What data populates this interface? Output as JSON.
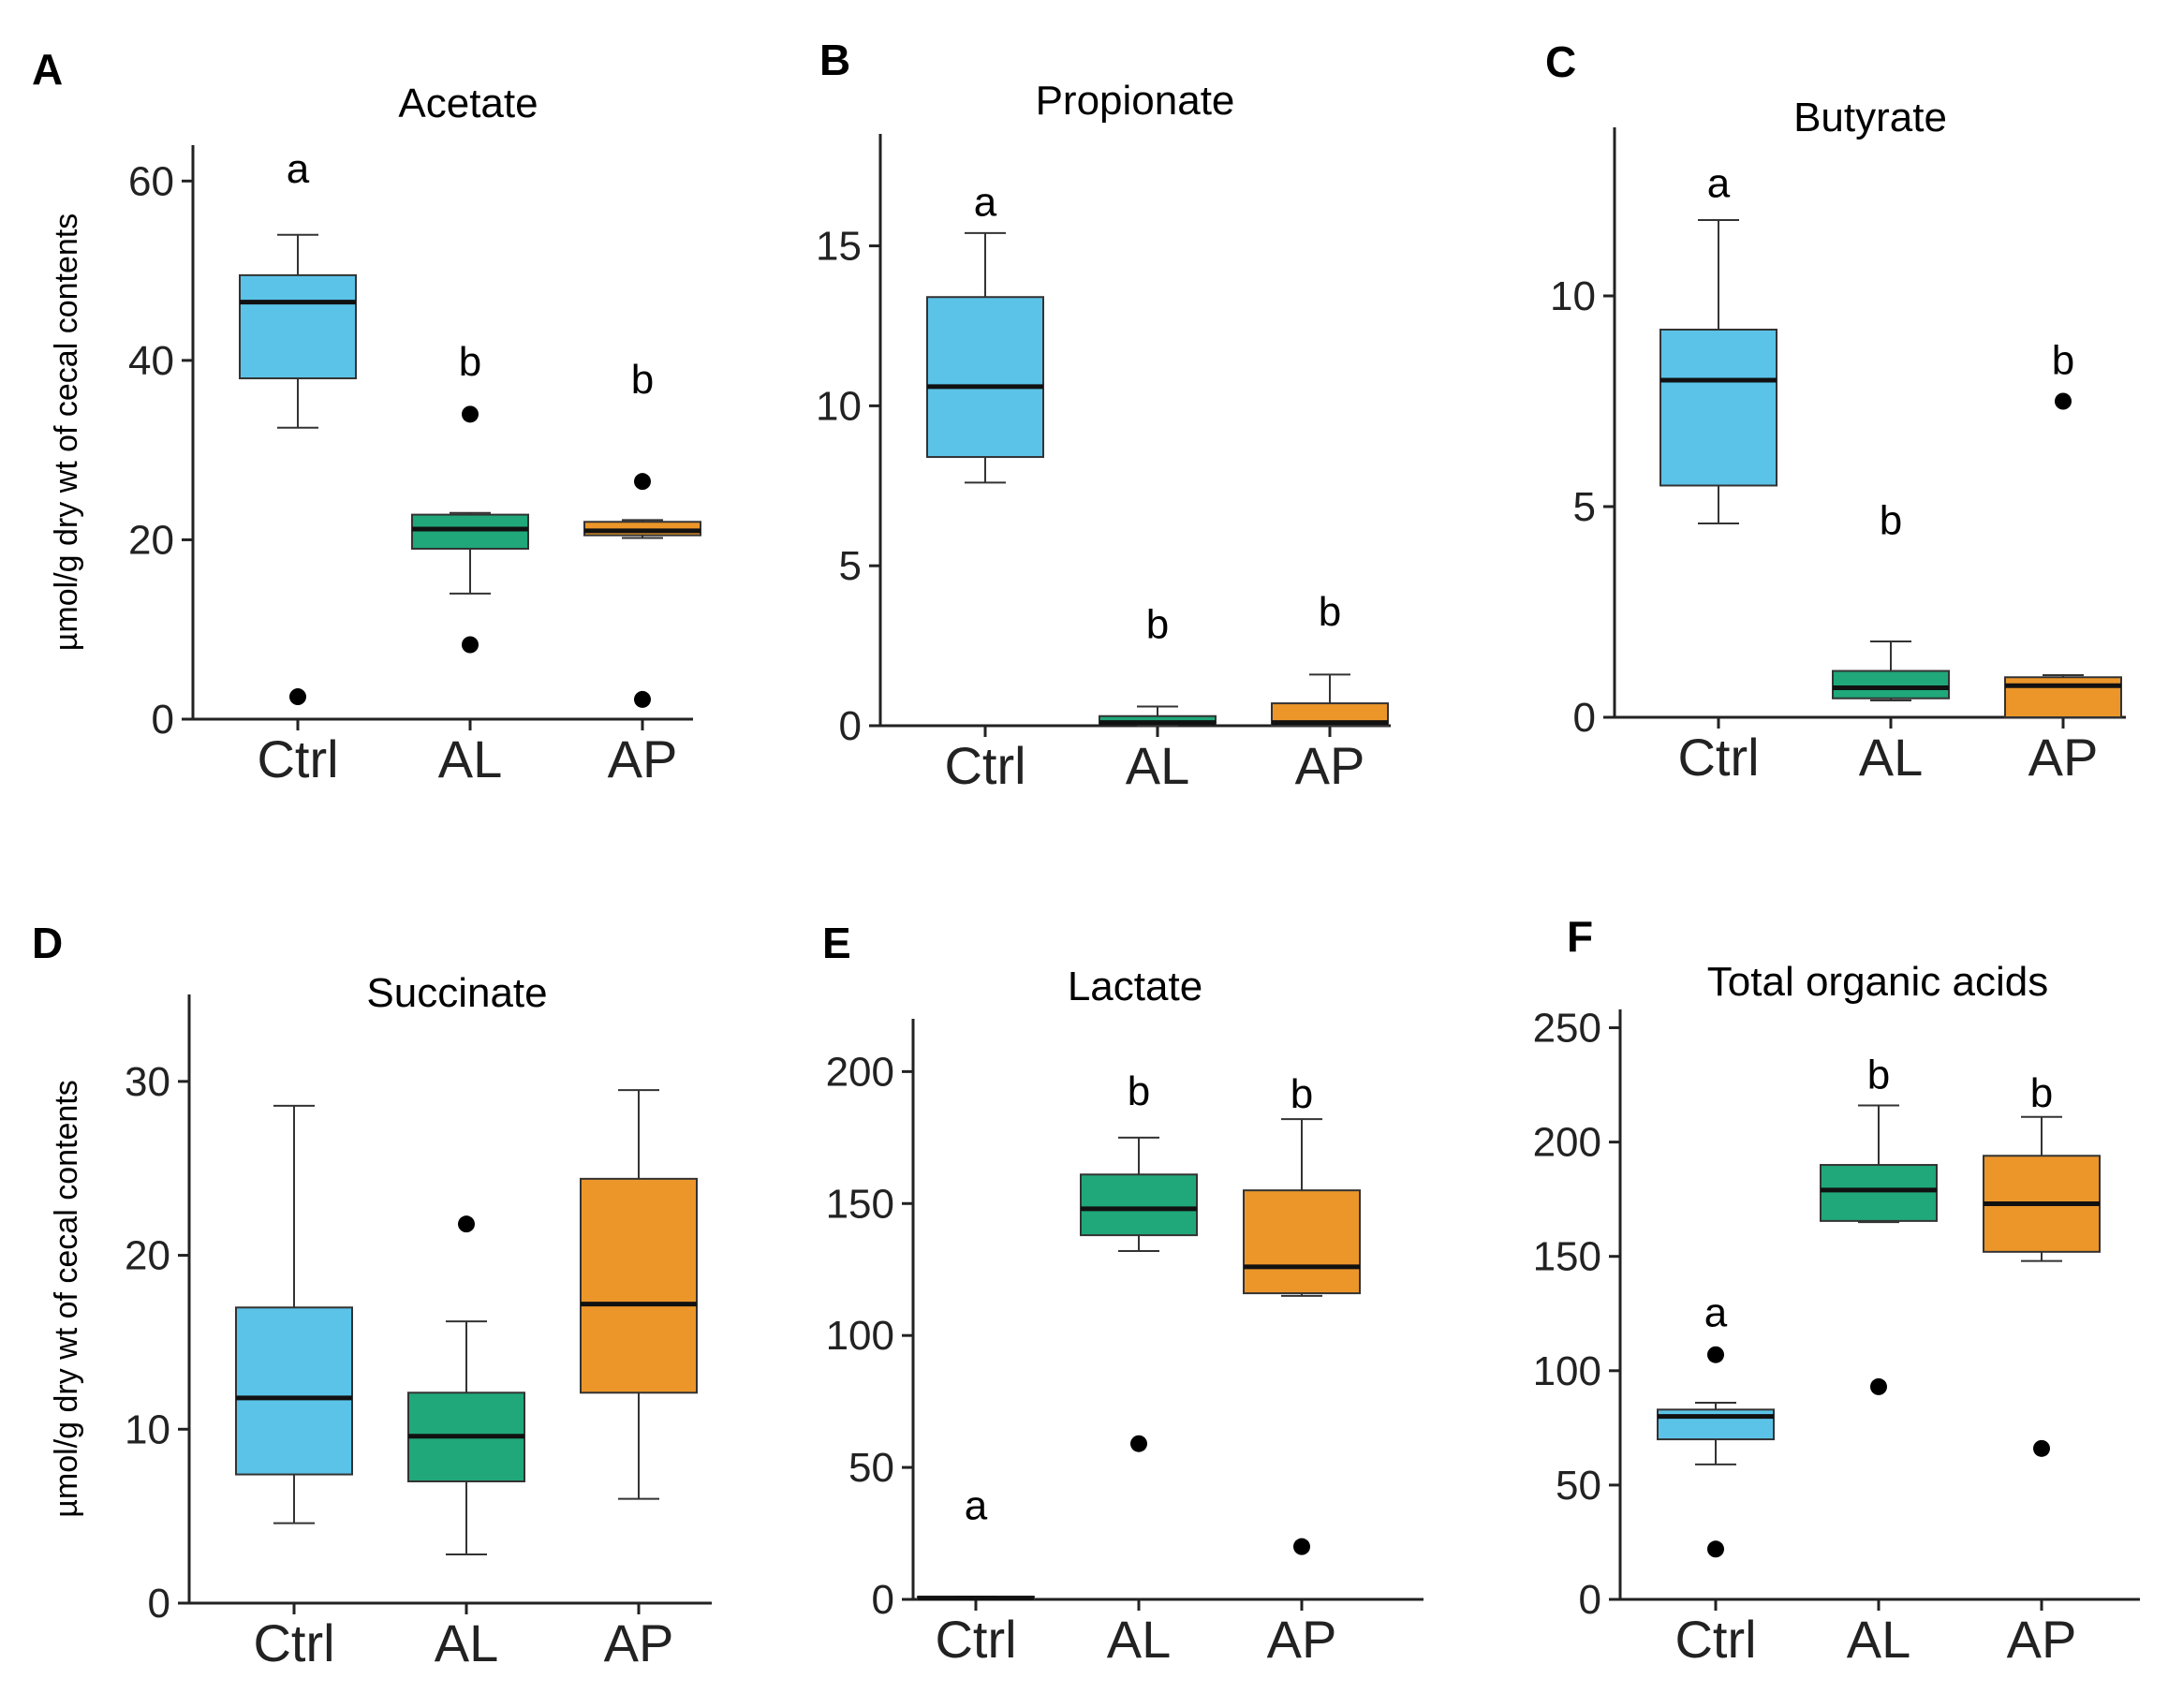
{
  "figure": {
    "ylabel": "µmol/g dry wt of cecal contents",
    "colors": {
      "Ctrl": "#5BC3E8",
      "AL": "#20A87A",
      "AP": "#EC962A",
      "outline": "#333333"
    }
  },
  "chart_data": [
    {
      "panel": "A",
      "title": "Acetate",
      "type": "box",
      "categories": [
        "Ctrl",
        "AL",
        "AP"
      ],
      "ylim": [
        0,
        64
      ],
      "yticks": [
        0,
        20,
        40,
        60
      ],
      "show_ylabel": true,
      "boxes": [
        {
          "group": "Ctrl",
          "whisker_low": 32.5,
          "q1": 38,
          "median": 46.5,
          "q3": 49.5,
          "whisker_high": 54,
          "outliers": [
            2.5
          ],
          "sig": "a",
          "sig_y": 61.5
        },
        {
          "group": "AL",
          "whisker_low": 14,
          "q1": 19,
          "median": 21.2,
          "q3": 22.8,
          "whisker_high": 23,
          "outliers": [
            8.3,
            34
          ],
          "sig": "b",
          "sig_y": 40
        },
        {
          "group": "AP",
          "whisker_low": 20.2,
          "q1": 20.5,
          "median": 21,
          "q3": 22,
          "whisker_high": 22.2,
          "outliers": [
            2.2,
            26.5
          ],
          "sig": "b",
          "sig_y": 38
        }
      ]
    },
    {
      "panel": "B",
      "title": "Propionate",
      "type": "box",
      "categories": [
        "Ctrl",
        "AL",
        "AP"
      ],
      "ylim": [
        0,
        18.5
      ],
      "yticks": [
        0,
        5,
        10,
        15
      ],
      "show_ylabel": false,
      "boxes": [
        {
          "group": "Ctrl",
          "whisker_low": 7.6,
          "q1": 8.4,
          "median": 10.6,
          "q3": 13.4,
          "whisker_high": 15.4,
          "outliers": [],
          "sig": "a",
          "sig_y": 16.4
        },
        {
          "group": "AL",
          "whisker_low": 0,
          "q1": 0.05,
          "median": 0.1,
          "q3": 0.3,
          "whisker_high": 0.6,
          "outliers": [],
          "sig": "b",
          "sig_y": 3.2
        },
        {
          "group": "AP",
          "whisker_low": 0,
          "q1": 0,
          "median": 0.1,
          "q3": 0.7,
          "whisker_high": 1.6,
          "outliers": [],
          "sig": "b",
          "sig_y": 3.6
        }
      ]
    },
    {
      "panel": "C",
      "title": "Butyrate",
      "type": "box",
      "categories": [
        "Ctrl",
        "AL",
        "AP"
      ],
      "ylim": [
        0,
        14
      ],
      "yticks": [
        0,
        5,
        10
      ],
      "show_ylabel": false,
      "boxes": [
        {
          "group": "Ctrl",
          "whisker_low": 4.6,
          "q1": 5.5,
          "median": 8,
          "q3": 9.2,
          "whisker_high": 11.8,
          "outliers": [],
          "sig": "a",
          "sig_y": 12.7
        },
        {
          "group": "AL",
          "whisker_low": 0.4,
          "q1": 0.45,
          "median": 0.7,
          "q3": 1.1,
          "whisker_high": 1.8,
          "outliers": [],
          "sig": "b",
          "sig_y": 4.7
        },
        {
          "group": "AP",
          "whisker_low": 0,
          "q1": 0,
          "median": 0.75,
          "q3": 0.95,
          "whisker_high": 1,
          "outliers": [
            7.5
          ],
          "sig": "b",
          "sig_y": 8.5
        }
      ]
    },
    {
      "panel": "D",
      "title": "Succinate",
      "type": "box",
      "categories": [
        "Ctrl",
        "AL",
        "AP"
      ],
      "ylim": [
        0,
        35
      ],
      "yticks": [
        0,
        10,
        20,
        30
      ],
      "show_ylabel": true,
      "boxes": [
        {
          "group": "Ctrl",
          "whisker_low": 4.6,
          "q1": 7.4,
          "median": 11.8,
          "q3": 17,
          "whisker_high": 28.6,
          "outliers": [],
          "sig": "",
          "sig_y": 0
        },
        {
          "group": "AL",
          "whisker_low": 2.8,
          "q1": 7,
          "median": 9.6,
          "q3": 12.1,
          "whisker_high": 16.2,
          "outliers": [
            21.8
          ],
          "sig": "",
          "sig_y": 0
        },
        {
          "group": "AP",
          "whisker_low": 6,
          "q1": 12.1,
          "median": 17.2,
          "q3": 24.4,
          "whisker_high": 29.5,
          "outliers": [],
          "sig": "",
          "sig_y": 0
        }
      ]
    },
    {
      "panel": "E",
      "title": "Lactate",
      "type": "box",
      "categories": [
        "Ctrl",
        "AL",
        "AP"
      ],
      "ylim": [
        0,
        220
      ],
      "yticks": [
        0,
        50,
        100,
        150,
        200
      ],
      "show_ylabel": false,
      "boxes": [
        {
          "group": "Ctrl",
          "whisker_low": 0,
          "q1": 0,
          "median": 0.5,
          "q3": 1,
          "whisker_high": 1,
          "outliers": [],
          "sig": "a",
          "sig_y": 36
        },
        {
          "group": "AL",
          "whisker_low": 132,
          "q1": 138,
          "median": 148,
          "q3": 161,
          "whisker_high": 175,
          "outliers": [
            59
          ],
          "sig": "b",
          "sig_y": 193
        },
        {
          "group": "AP",
          "whisker_low": 115,
          "q1": 116,
          "median": 126,
          "q3": 155,
          "whisker_high": 182,
          "outliers": [
            20
          ],
          "sig": "b",
          "sig_y": 192
        }
      ]
    },
    {
      "panel": "F",
      "title": "Total organic acids",
      "type": "box",
      "categories": [
        "Ctrl",
        "AL",
        "AP"
      ],
      "ylim": [
        0,
        258
      ],
      "yticks": [
        0,
        50,
        100,
        150,
        200,
        250
      ],
      "show_ylabel": false,
      "boxes": [
        {
          "group": "Ctrl",
          "whisker_low": 59,
          "q1": 70,
          "median": 80,
          "q3": 83,
          "whisker_high": 86,
          "outliers": [
            22,
            107
          ],
          "sig": "a",
          "sig_y": 126
        },
        {
          "group": "AL",
          "whisker_low": 165,
          "q1": 165.5,
          "median": 179,
          "q3": 190,
          "whisker_high": 216,
          "outliers": [
            93
          ],
          "sig": "b",
          "sig_y": 230
        },
        {
          "group": "AP",
          "whisker_low": 148,
          "q1": 152,
          "median": 173,
          "q3": 194,
          "whisker_high": 211,
          "outliers": [
            66
          ],
          "sig": "b",
          "sig_y": 222
        }
      ]
    }
  ]
}
